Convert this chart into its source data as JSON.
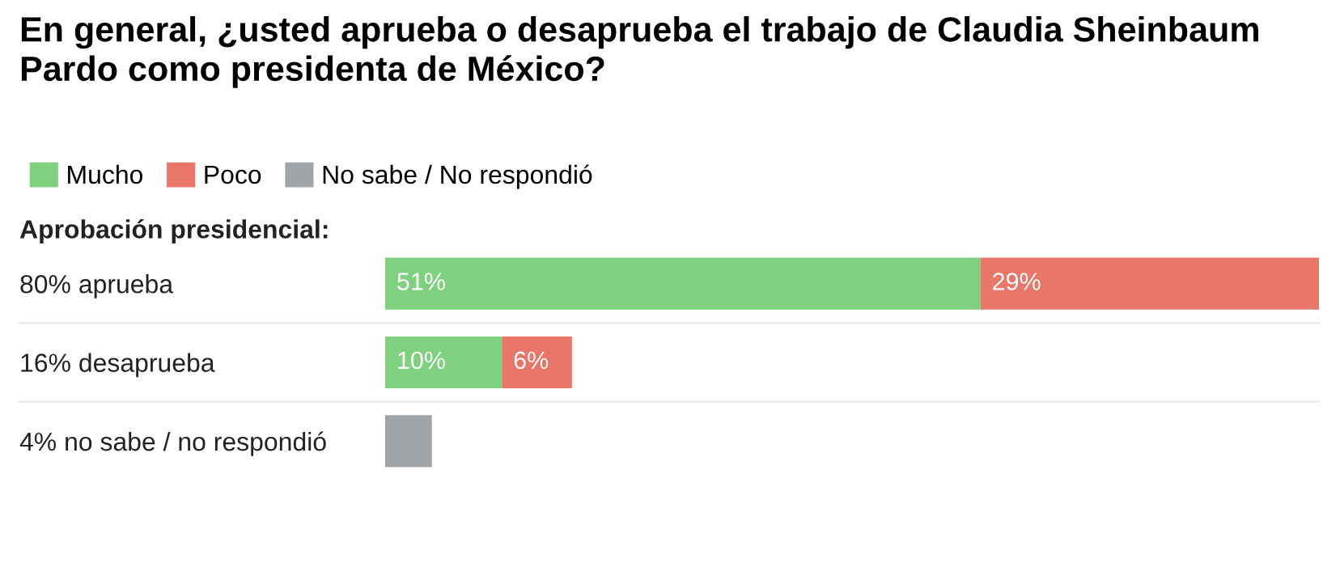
{
  "chart_data": {
    "type": "bar",
    "orientation": "horizontal",
    "stacked": true,
    "title": "En general, ¿usted aprueba o desaprueba el trabajo de Claudia Sheinbaum Pardo como presidenta de México?",
    "subtitle": "Aprobación presidencial:",
    "categories": [
      "80% aprueba",
      "16% desaprueba",
      "4% no sabe / no respondió"
    ],
    "series": [
      {
        "name": "Mucho",
        "color": "#7fd07f",
        "values": [
          51,
          10,
          null
        ],
        "value_labels": [
          "51%",
          "10%",
          null
        ]
      },
      {
        "name": "Poco",
        "color": "#e8776a",
        "values": [
          29,
          6,
          null
        ],
        "value_labels": [
          "29%",
          "6%",
          null
        ]
      },
      {
        "name": "No sabe / No respondió",
        "color": "#a1a5a7",
        "values": [
          null,
          null,
          4
        ],
        "value_labels": [
          null,
          null,
          null
        ]
      }
    ],
    "xlim": [
      0,
      80
    ],
    "tick_labels": "y",
    "grid": false,
    "legend": "top left"
  }
}
